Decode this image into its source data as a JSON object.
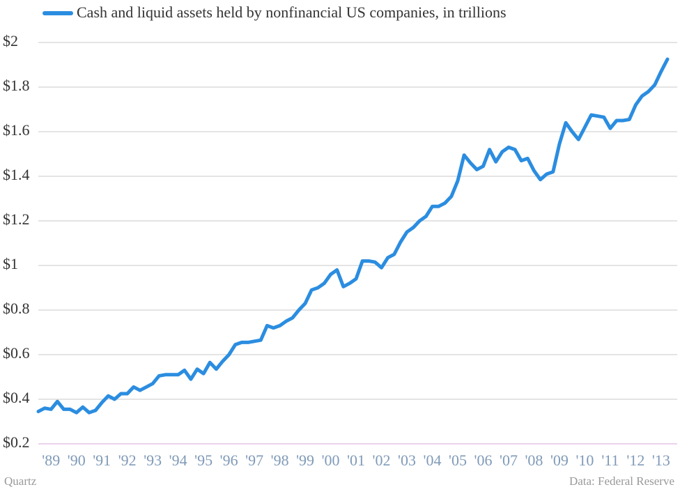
{
  "chart_data": {
    "type": "line",
    "source": "Data: Federal Reserve",
    "credit": "Quartz",
    "categories": [
      null,
      null,
      "'89",
      null,
      null,
      null,
      "'90",
      null,
      null,
      null,
      "'91",
      null,
      null,
      null,
      "'92",
      null,
      null,
      null,
      "'93",
      null,
      null,
      null,
      "'94",
      null,
      null,
      null,
      "'95",
      null,
      null,
      null,
      "'96",
      null,
      null,
      null,
      "'97",
      null,
      null,
      null,
      "'98",
      null,
      null,
      null,
      "'99",
      null,
      null,
      null,
      "'00",
      null,
      null,
      null,
      "'01",
      null,
      null,
      null,
      "'02",
      null,
      null,
      null,
      "'03",
      null,
      null,
      null,
      "'04",
      null,
      null,
      null,
      "'05",
      null,
      null,
      null,
      "'06",
      null,
      null,
      null,
      "'07",
      null,
      null,
      null,
      "'08",
      null,
      null,
      null,
      "'09",
      null,
      null,
      null,
      "'10",
      null,
      null,
      null,
      "'11",
      null,
      null,
      null,
      "'12",
      null,
      null,
      null,
      "'13",
      null
    ],
    "series": [
      {
        "name": "Cash and liquid assets held by nonfinancial US companies, in trillions",
        "color": "#2b8de0",
        "values": [
          0.345,
          0.36,
          0.355,
          0.39,
          0.355,
          0.355,
          0.34,
          0.365,
          0.34,
          0.35,
          0.385,
          0.415,
          0.4,
          0.425,
          0.425,
          0.455,
          0.44,
          0.455,
          0.47,
          0.505,
          0.51,
          0.51,
          0.51,
          0.53,
          0.49,
          0.535,
          0.515,
          0.565,
          0.535,
          0.57,
          0.6,
          0.645,
          0.655,
          0.655,
          0.66,
          0.665,
          0.73,
          0.72,
          0.73,
          0.75,
          0.765,
          0.8,
          0.83,
          0.89,
          0.9,
          0.92,
          0.96,
          0.98,
          0.905,
          0.92,
          0.94,
          1.02,
          1.02,
          1.015,
          0.99,
          1.035,
          1.05,
          1.105,
          1.15,
          1.17,
          1.2,
          1.22,
          1.265,
          1.265,
          1.28,
          1.31,
          1.38,
          1.495,
          1.46,
          1.43,
          1.445,
          1.52,
          1.465,
          1.51,
          1.53,
          1.52,
          1.47,
          1.48,
          1.425,
          1.385,
          1.41,
          1.42,
          1.545,
          1.64,
          1.6,
          1.565,
          1.62,
          1.675,
          1.67,
          1.665,
          1.615,
          1.65,
          1.65,
          1.655,
          1.72,
          1.76,
          1.78,
          1.81,
          1.87,
          1.925
        ]
      }
    ],
    "ylim": [
      0.2,
      2
    ],
    "yticks": [
      {
        "value": 0.2,
        "label": "$0.2"
      },
      {
        "value": 0.4,
        "label": "$0.4"
      },
      {
        "value": 0.6,
        "label": "$0.6"
      },
      {
        "value": 0.8,
        "label": "$0.8"
      },
      {
        "value": 1,
        "label": "$1"
      },
      {
        "value": 1.2,
        "label": "$1.2"
      },
      {
        "value": 1.4,
        "label": "$1.4"
      },
      {
        "value": 1.6,
        "label": "$1.6"
      },
      {
        "value": 1.8,
        "label": "$1.8"
      },
      {
        "value": 2,
        "label": "$2"
      }
    ],
    "grid": true
  }
}
